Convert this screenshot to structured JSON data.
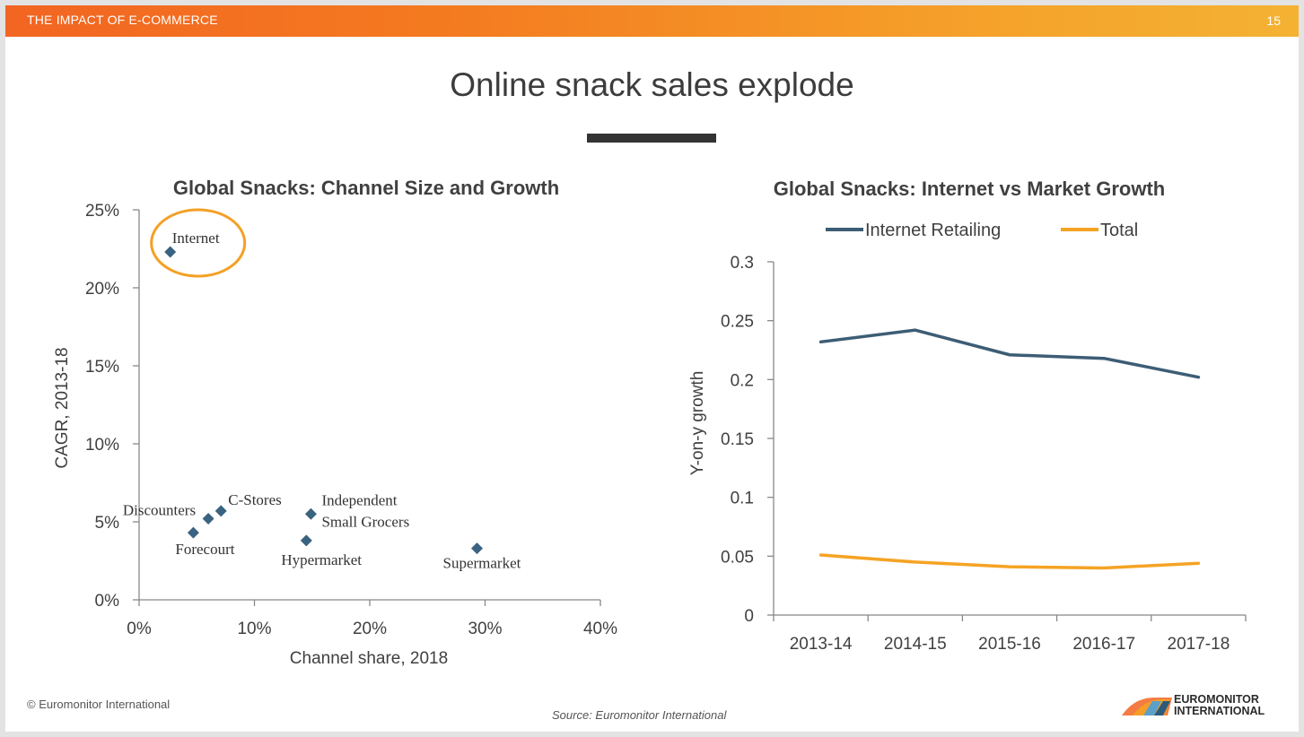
{
  "header": {
    "title": "THE IMPACT OF E-COMMERCE",
    "page_number": "15"
  },
  "slide_title": "Online snack sales explode",
  "chart_data": [
    {
      "type": "scatter",
      "title": "Global Snacks: Channel Size and Growth",
      "xlabel": "Channel share, 2018",
      "ylabel": "CAGR, 2013-18",
      "xlim": [
        0,
        40
      ],
      "ylim": [
        0,
        25
      ],
      "x_ticks": [
        "0%",
        "10%",
        "20%",
        "30%",
        "40%"
      ],
      "y_ticks": [
        "0%",
        "5%",
        "10%",
        "15%",
        "20%",
        "25%"
      ],
      "points": [
        {
          "label": "Internet",
          "x": 2.7,
          "y": 22.3,
          "highlighted": true
        },
        {
          "label": "C-Stores",
          "x": 7.1,
          "y": 5.7
        },
        {
          "label": "Discounters",
          "x": 6.0,
          "y": 5.2
        },
        {
          "label": "Forecourt",
          "x": 4.7,
          "y": 4.3
        },
        {
          "label": "Independent Small Grocers",
          "label_lines": [
            "Independent",
            "Small Grocers"
          ],
          "x": 14.9,
          "y": 5.5
        },
        {
          "label": "Hypermarket",
          "x": 14.5,
          "y": 3.8
        },
        {
          "label": "Supermarket",
          "x": 29.3,
          "y": 3.3
        }
      ],
      "marker_color": "#3a6381",
      "highlight_color": "#f4a024"
    },
    {
      "type": "line",
      "title": "Global Snacks: Internet vs Market Growth",
      "xlabel": "",
      "ylabel": "Y-on-y growth",
      "categories": [
        "2013-14",
        "2014-15",
        "2015-16",
        "2016-17",
        "2017-18"
      ],
      "ylim": [
        0,
        0.3
      ],
      "y_ticks": [
        "0",
        "0.05",
        "0.1",
        "0.15",
        "0.2",
        "0.25",
        "0.3"
      ],
      "legend_position": "top",
      "series": [
        {
          "name": "Internet Retailing",
          "values": [
            0.232,
            0.242,
            0.221,
            0.218,
            0.202
          ],
          "color": "#3d5d75"
        },
        {
          "name": "Total",
          "values": [
            0.051,
            0.045,
            0.041,
            0.04,
            0.044
          ],
          "color": "#f5a324"
        }
      ]
    }
  ],
  "footer": {
    "copyright": "© Euromonitor International",
    "source": "Source: Euromonitor International",
    "logo_line1": "EUROMONITOR",
    "logo_line2": "INTERNATIONAL"
  }
}
